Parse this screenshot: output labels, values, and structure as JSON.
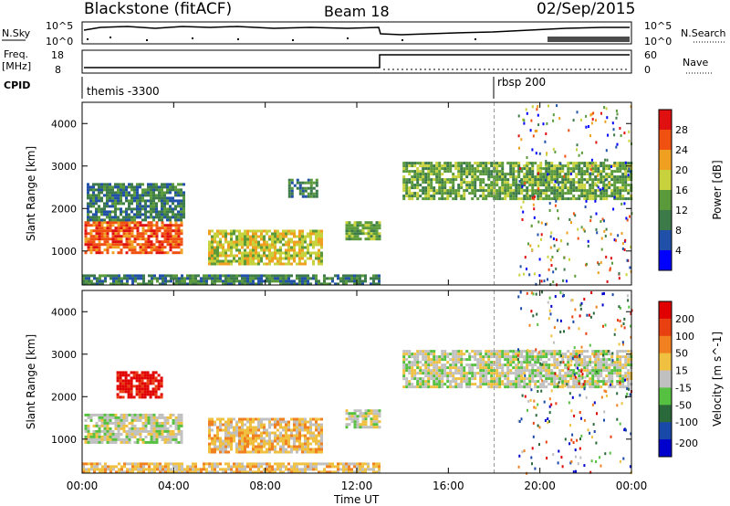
{
  "header": {
    "station": "Blackstone (fitACF)",
    "beam": "Beam 18",
    "date": "02/Sep/2015"
  },
  "summary_panels": {
    "nsky": {
      "label": "N.Sky",
      "ticks": [
        "10^5",
        "10^0"
      ]
    },
    "nsearch": {
      "label": "N.Search",
      "ticks": [
        "10^5",
        "10^0"
      ]
    },
    "freq": {
      "label_line1": "Freq.",
      "label_line2": "[MHz]",
      "ticks": [
        "18",
        "8"
      ]
    },
    "nave": {
      "label": "Nave",
      "ticks": [
        "60",
        "0"
      ]
    },
    "cpid": {
      "label": "CPID",
      "segments": [
        {
          "name": "themis -3300",
          "start_hour": 0,
          "end_hour": 18
        },
        {
          "name": "rbsp 200",
          "start_hour": 18,
          "end_hour": 24
        }
      ]
    }
  },
  "colors": {
    "power": [
      "#0000ff",
      "#2050a8",
      "#3c7a4a",
      "#5a9a3a",
      "#c8d23c",
      "#f0a020",
      "#f05010",
      "#e01010"
    ],
    "velocity": [
      "#0000cc",
      "#1848a8",
      "#2a6a3a",
      "#56c040",
      "#c0c0c0",
      "#f0c040",
      "#f08020",
      "#e84010",
      "#e00000"
    ]
  },
  "chart_data": [
    {
      "type": "heatmap",
      "panel": "power",
      "ylabel": "Slant Range [km]",
      "xlabel": "",
      "xlim": [
        0,
        24
      ],
      "ylim": [
        200,
        4500
      ],
      "yticks": [
        "1000",
        "2000",
        "3000",
        "4000"
      ],
      "colorbar": {
        "label": "Power [dB]",
        "levels": [
          "4",
          "8",
          "12",
          "16",
          "20",
          "24",
          "28"
        ]
      },
      "regions": [
        {
          "t0": 0.1,
          "t1": 4.3,
          "r0": 950,
          "r1": 1700,
          "level": 6
        },
        {
          "t0": 0.2,
          "t1": 4.5,
          "r0": 1700,
          "r1": 2600,
          "level": 2
        },
        {
          "t0": 5.5,
          "t1": 10.5,
          "r0": 700,
          "r1": 1500,
          "level": 4
        },
        {
          "t0": 9.0,
          "t1": 10.2,
          "r0": 2300,
          "r1": 2700,
          "level": 2
        },
        {
          "t0": 11.5,
          "t1": 13.0,
          "r0": 1300,
          "r1": 1700,
          "level": 3
        },
        {
          "t0": 14.0,
          "t1": 24.0,
          "r0": 2200,
          "r1": 3100,
          "level": 3
        },
        {
          "t0": 0.0,
          "t1": 13.0,
          "r0": 250,
          "r1": 450,
          "level": 2
        }
      ]
    },
    {
      "type": "heatmap",
      "panel": "velocity",
      "ylabel": "Slant Range [km]",
      "xlabel": "Time UT",
      "xlim": [
        0,
        24
      ],
      "ylim": [
        200,
        4500
      ],
      "xticks": [
        "00:00",
        "04:00",
        "08:00",
        "12:00",
        "16:00",
        "20:00",
        "00:00"
      ],
      "yticks": [
        "1000",
        "2000",
        "3000",
        "4000"
      ],
      "colorbar": {
        "label": "Velocity [m s^-1]",
        "levels": [
          "200",
          "100",
          "50",
          "15",
          "-15",
          "-50",
          "-100",
          "-200"
        ]
      },
      "regions": [
        {
          "t0": 0.1,
          "t1": 4.3,
          "r0": 950,
          "r1": 1600,
          "level": 4
        },
        {
          "t0": 1.5,
          "t1": 3.5,
          "r0": 2000,
          "r1": 2600,
          "level": 8
        },
        {
          "t0": 5.5,
          "t1": 10.5,
          "r0": 700,
          "r1": 1500,
          "level": 5
        },
        {
          "t0": 11.5,
          "t1": 13.0,
          "r0": 1300,
          "r1": 1700,
          "level": 4
        },
        {
          "t0": 14.0,
          "t1": 24.0,
          "r0": 2200,
          "r1": 3100,
          "level": 4
        },
        {
          "t0": 0.0,
          "t1": 13.0,
          "r0": 250,
          "r1": 450,
          "level": 5
        }
      ]
    }
  ]
}
